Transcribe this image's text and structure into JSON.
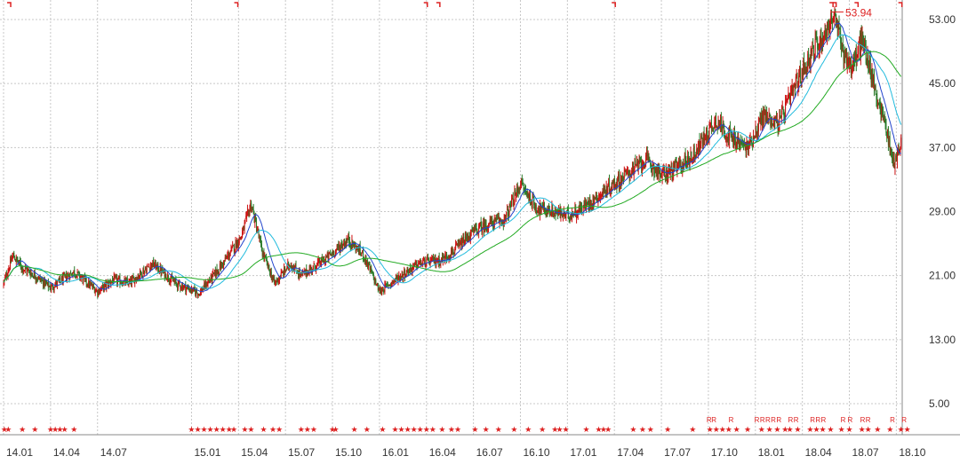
{
  "chart_data": {
    "type": "candlestick",
    "title": "",
    "xlabel": "",
    "ylabel": "",
    "ylim": [
      0.0,
      55.0
    ],
    "y_ticks": [
      "53.00",
      "45.00",
      "37.00",
      "29.00",
      "21.00",
      "13.00",
      "5.00"
    ],
    "y_tick_values": [
      53,
      45,
      37,
      29,
      21,
      13,
      5
    ],
    "x_ticks": [
      "14.01",
      "14.04",
      "14.07",
      "15.01",
      "15.04",
      "15.07",
      "15.10",
      "16.01",
      "16.04",
      "16.07",
      "16.10",
      "17.01",
      "17.04",
      "17.07",
      "17.10",
      "18.01",
      "18.04",
      "18.07",
      "18.10"
    ],
    "x_tick_month_index": [
      0,
      3,
      6,
      12,
      15,
      18,
      21,
      24,
      27,
      30,
      33,
      36,
      39,
      42,
      45,
      48,
      51,
      54,
      57
    ],
    "x_month_range": [
      0,
      58
    ],
    "price_path": [
      [
        0,
        20.0
      ],
      [
        0.6,
        23.5
      ],
      [
        1.2,
        22.0
      ],
      [
        2.0,
        21.0
      ],
      [
        3.0,
        19.5
      ],
      [
        4.5,
        21.5
      ],
      [
        6.0,
        19.0
      ],
      [
        7.0,
        20.5
      ],
      [
        8.0,
        20.0
      ],
      [
        9.5,
        22.5
      ],
      [
        11.0,
        20.0
      ],
      [
        12.5,
        18.8
      ],
      [
        14.0,
        22.5
      ],
      [
        15.2,
        26.0
      ],
      [
        15.8,
        30.0
      ],
      [
        16.5,
        24.0
      ],
      [
        17.3,
        20.0
      ],
      [
        18.3,
        22.5
      ],
      [
        19.0,
        21.0
      ],
      [
        20.5,
        23.0
      ],
      [
        22.0,
        25.5
      ],
      [
        23.0,
        23.5
      ],
      [
        24.0,
        19.0
      ],
      [
        25.0,
        20.5
      ],
      [
        26.5,
        22.5
      ],
      [
        28.0,
        23.0
      ],
      [
        29.0,
        24.5
      ],
      [
        30.0,
        26.5
      ],
      [
        31.0,
        27.5
      ],
      [
        32.0,
        28.0
      ],
      [
        33.0,
        32.5
      ],
      [
        34.0,
        29.5
      ],
      [
        35.0,
        29.0
      ],
      [
        36.0,
        28.5
      ],
      [
        37.0,
        29.5
      ],
      [
        38.0,
        31.0
      ],
      [
        39.0,
        32.5
      ],
      [
        40.0,
        34.0
      ],
      [
        41.0,
        35.5
      ],
      [
        42.0,
        33.5
      ],
      [
        43.0,
        34.5
      ],
      [
        44.0,
        36.0
      ],
      [
        45.5,
        40.5
      ],
      [
        46.5,
        38.0
      ],
      [
        47.5,
        37.0
      ],
      [
        48.5,
        41.0
      ],
      [
        49.5,
        40.0
      ],
      [
        50.5,
        44.5
      ],
      [
        51.5,
        48.5
      ],
      [
        52.5,
        51.5
      ],
      [
        53.0,
        53.5
      ],
      [
        53.6,
        49.0
      ],
      [
        54.2,
        47.0
      ],
      [
        54.8,
        50.5
      ],
      [
        55.3,
        47.0
      ],
      [
        55.8,
        43.0
      ],
      [
        56.3,
        40.0
      ],
      [
        56.8,
        35.0
      ],
      [
        57.3,
        37.5
      ]
    ],
    "moving_averages": [
      {
        "color": "#2244cc",
        "window_months": 0.8
      },
      {
        "color": "#22bbdd",
        "window_months": 2.0
      },
      {
        "color": "#22aa22",
        "window_months": 5.0
      }
    ],
    "up_color": "#cc1111",
    "down_color": "#2a7a2a",
    "annotation": {
      "text": "53.94",
      "x_month": 53.4,
      "y": 53.94,
      "color": "#dd2222"
    },
    "top_markers_x_month": [
      0.4,
      14.9,
      27.0,
      27.8,
      39.0,
      52.9,
      53.1,
      54.5,
      57.3
    ],
    "top_marker_color": "#dd2222",
    "star_markers_x_month": [
      0.05,
      0.3,
      1.2,
      2.0,
      3.0,
      3.3,
      3.6,
      3.9,
      4.5,
      12.0,
      12.4,
      12.8,
      13.2,
      13.6,
      14.0,
      14.4,
      14.7,
      15.4,
      15.8,
      16.6,
      17.2,
      17.6,
      19.0,
      19.4,
      19.8,
      21.0,
      21.2,
      22.4,
      23.2,
      24.2,
      25.0,
      25.4,
      25.8,
      26.2,
      26.6,
      27.0,
      27.4,
      28.0,
      28.6,
      29.0,
      30.1,
      30.8,
      31.6,
      32.6,
      33.5,
      34.4,
      35.2,
      35.5,
      35.9,
      37.2,
      38.0,
      38.3,
      38.6,
      40.2,
      40.8,
      41.3,
      42.4,
      44.0,
      45.1,
      45.5,
      45.9,
      46.3,
      46.8,
      47.5,
      48.4,
      48.9,
      49.4,
      49.9,
      50.2,
      50.7,
      51.5,
      51.9,
      52.3,
      52.8,
      53.5,
      54.0,
      54.8,
      55.2,
      55.8,
      56.6,
      57.3,
      57.7
    ],
    "star_color": "#dd2222",
    "r_marker_rows": [
      {
        "x_month": [
          45.05,
          45.35,
          46.45,
          48.1,
          48.45,
          48.8,
          49.15,
          49.5,
          50.25,
          50.6,
          51.65,
          52.0,
          52.35,
          53.6,
          54.05,
          54.85,
          55.2,
          56.75,
          57.5
        ],
        "labels": [
          "R",
          "R",
          "R",
          "R",
          "R",
          "R",
          "R",
          "R",
          "R",
          "R",
          "R",
          "R",
          "R",
          "R",
          "R",
          "R",
          "R",
          "R",
          "R"
        ]
      }
    ],
    "r_marker_color": "#dd2222",
    "grid": true,
    "legend": "none"
  }
}
